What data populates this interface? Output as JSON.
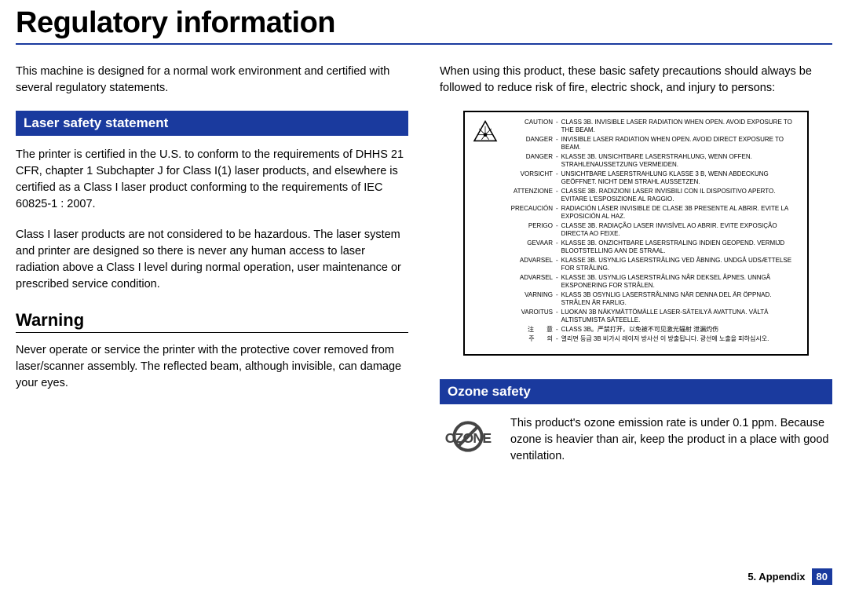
{
  "title": "Regulatory information",
  "intro": "This machine is designed for a normal work environment and certified with several regulatory statements.",
  "laser": {
    "heading": "Laser safety statement",
    "p1": "The printer is certified in the U.S. to conform to the requirements of DHHS 21 CFR, chapter 1 Subchapter J for Class I(1) laser products, and elsewhere is certified as a Class I laser product conforming to the requirements of IEC 60825-1 : 2007.",
    "p2": "Class I laser products are not considered to be hazardous. The laser system and printer are designed so there is never any human access to laser radiation above a Class I level during normal operation, user maintenance or prescribed service condition."
  },
  "warning": {
    "heading": "Warning",
    "p1": "Never operate or service the printer with the protective cover removed from laser/scanner assembly. The reflected beam, although invisible, can damage your eyes.",
    "p2": "When using this product, these basic safety precautions should always be followed to reduce risk of fire, electric shock, and injury to persons:"
  },
  "warningLabel": {
    "rows": [
      {
        "label": "CAUTION",
        "text": "CLASS 3B. INVISIBLE LASER RADIATION WHEN OPEN. AVOID EXPOSURE TO THE BEAM."
      },
      {
        "label": "DANGER",
        "text": "INVISIBLE LASER RADIATION WHEN OPEN. AVOID DIRECT EXPOSURE TO BEAM."
      },
      {
        "label": "DANGER",
        "text": "KLASSE 3B. UNSICHTBARE LASERSTRAHLUNG, WENN OFFEN. STRAHLENAUSSETZUNG VERMEIDEN."
      },
      {
        "label": "VORSICHT",
        "text": "UNSICHTBARE LASERSTRAHLUNG KLASSE 3 B, WENN ABDECKUNG GEÖFFNET. NICHT DEM STRAHL AUSSETZEN."
      },
      {
        "label": "ATTENZIONE",
        "text": "CLASSE 3B. RADIZIONI LASER INVISBILI CON IL DISPOSITIVO APERTO. EVITARE L'ESPOSIZIONE AL RAGGIO."
      },
      {
        "label": "PRECAUCIÓN",
        "text": "RADIACIÓN LÁSER INVISIBLE DE CLASE 3B PRESENTE AL ABRIR. EVITE LA EXPOSICIÓN AL HAZ."
      },
      {
        "label": "PERIGO",
        "text": "CLASSE 3B. RADIAÇÃO LASER INVISÍVEL AO ABRIR. EVITE EXPOSIÇÃO DIRECTA AO FEIXE."
      },
      {
        "label": "GEVAAR",
        "text": "KLASSE 3B. ONZICHTBARE LASERSTRALING INDIEN GEOPEND. VERMIJD BLOOTSTELLING AAN DE STRAAL."
      },
      {
        "label": "ADVARSEL",
        "text": "KLASSE 3B. USYNLIG LASERSTRÅLING VED ÅBNING. UNDGÅ UDSÆTTELSE FOR STRÅLING."
      },
      {
        "label": "ADVARSEL",
        "text": "KLASSE 3B. USYNLIG LASERSTRÅLING NÅR DEKSEL ÅPNES. UNNGÅ EKSPONERING FOR STRÅLEN."
      },
      {
        "label": "VARNING",
        "text": "KLASS 3B OSYNLIG LASERSTRÅLNING NÄR DENNA DEL ÄR ÖPPNAD. STRÅLEN ÄR FARLIG."
      },
      {
        "label": "VAROITUS",
        "text": "LUOKAN 3B NÄKYMÄTTÖMÄLLE LASER-SÄTEILYÄ AVATTUNA. VÄLTÄ ALTISTUMISTA SÄTEELLE."
      },
      {
        "label": "注　　意",
        "text": "CLASS 3B。严禁打开，以免被不可见激光辐射 泄漏灼伤"
      },
      {
        "label": "주　　의",
        "text": "열리면 등급 3B 비가시 레이저 방사선 이 방출됩니다. 광선에 노출을 피하십시오."
      }
    ]
  },
  "ozone": {
    "heading": "Ozone safety",
    "iconText": "OZONE",
    "p1": "This product's ozone emission rate is under 0.1 ppm. Because ozone is heavier than air, keep the product in a place with good ventilation."
  },
  "footer": {
    "chapter": "5. Appendix",
    "page": "80"
  },
  "colors": {
    "brand": "#1a3a9e",
    "text": "#000000",
    "bg": "#ffffff"
  }
}
